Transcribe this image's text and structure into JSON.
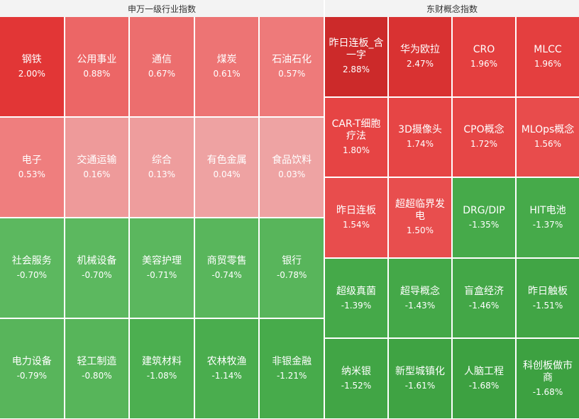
{
  "left_panel": {
    "title": "申万一级行业指数",
    "tiles": [
      {
        "name": "钢铁",
        "pct": "2.00%",
        "color": "#e23636"
      },
      {
        "name": "公用事业",
        "pct": "0.88%",
        "color": "#ec6666"
      },
      {
        "name": "通信",
        "pct": "0.67%",
        "color": "#ec6e6e"
      },
      {
        "name": "煤炭",
        "pct": "0.61%",
        "color": "#ed7474"
      },
      {
        "name": "石油石化",
        "pct": "0.57%",
        "color": "#ee7a7a"
      },
      {
        "name": "电子",
        "pct": "0.53%",
        "color": "#ef7e7e"
      },
      {
        "name": "交通运输",
        "pct": "0.16%",
        "color": "#ee9a9a"
      },
      {
        "name": "综合",
        "pct": "0.13%",
        "color": "#ee9d9d"
      },
      {
        "name": "有色金属",
        "pct": "0.04%",
        "color": "#eea2a2"
      },
      {
        "name": "食品饮料",
        "pct": "0.03%",
        "color": "#eea3a3"
      },
      {
        "name": "社会服务",
        "pct": "-0.70%",
        "color": "#5cb85f"
      },
      {
        "name": "机械设备",
        "pct": "-0.70%",
        "color": "#5cb85f"
      },
      {
        "name": "美容护理",
        "pct": "-0.71%",
        "color": "#5bb75e"
      },
      {
        "name": "商贸零售",
        "pct": "-0.74%",
        "color": "#59b65c"
      },
      {
        "name": "银行",
        "pct": "-0.78%",
        "color": "#58b55b"
      },
      {
        "name": "电力设备",
        "pct": "-0.79%",
        "color": "#58b55b"
      },
      {
        "name": "轻工制造",
        "pct": "-0.80%",
        "color": "#57b55a"
      },
      {
        "name": "建筑材料",
        "pct": "-1.08%",
        "color": "#4caf50"
      },
      {
        "name": "农林牧渔",
        "pct": "-1.14%",
        "color": "#4aad4e"
      },
      {
        "name": "非银金融",
        "pct": "-1.21%",
        "color": "#47ab4b"
      }
    ]
  },
  "right_panel": {
    "title": "东财概念指数",
    "tiles": [
      {
        "name": "昨日连板_含一字",
        "pct": "2.88%",
        "color": "#cc2a2a"
      },
      {
        "name": "华为欧拉",
        "pct": "2.47%",
        "color": "#d93232"
      },
      {
        "name": "CRO",
        "pct": "1.96%",
        "color": "#e43f3f"
      },
      {
        "name": "MLCC",
        "pct": "1.96%",
        "color": "#e43f3f"
      },
      {
        "name": "CAR-T细胞疗法",
        "pct": "1.80%",
        "color": "#e64444"
      },
      {
        "name": "3D摄像头",
        "pct": "1.74%",
        "color": "#e64545"
      },
      {
        "name": "CPO概念",
        "pct": "1.72%",
        "color": "#e64646"
      },
      {
        "name": "MLOps概念",
        "pct": "1.56%",
        "color": "#e84c4c"
      },
      {
        "name": "昨日连板",
        "pct": "1.54%",
        "color": "#e84d4d"
      },
      {
        "name": "超超临界发电",
        "pct": "1.50%",
        "color": "#e84e4e"
      },
      {
        "name": "DRG/DIP",
        "pct": "-1.35%",
        "color": "#46aa4a"
      },
      {
        "name": "HIT电池",
        "pct": "-1.37%",
        "color": "#46aa4a"
      },
      {
        "name": "超级真菌",
        "pct": "-1.39%",
        "color": "#45a949"
      },
      {
        "name": "超导概念",
        "pct": "-1.43%",
        "color": "#44a848"
      },
      {
        "name": "盲盒经济",
        "pct": "-1.46%",
        "color": "#43a747"
      },
      {
        "name": "昨日触板",
        "pct": "-1.51%",
        "color": "#41a545"
      },
      {
        "name": "纳米银",
        "pct": "-1.52%",
        "color": "#41a545"
      },
      {
        "name": "新型城镇化",
        "pct": "-1.61%",
        "color": "#3fa343"
      },
      {
        "name": "人脑工程",
        "pct": "-1.68%",
        "color": "#3da141"
      },
      {
        "name": "科创板做市商",
        "pct": "-1.68%",
        "color": "#3da141"
      }
    ]
  }
}
